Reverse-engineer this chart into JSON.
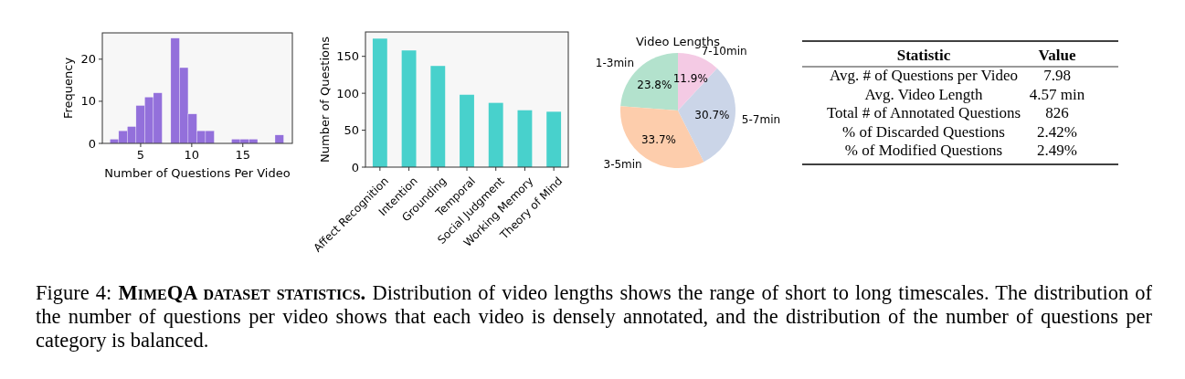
{
  "chart_data": [
    {
      "type": "histogram",
      "xlabel": "Number of Questions Per Video",
      "ylabel": "Frequency",
      "bins": [
        2,
        2.85,
        3.7,
        4.55,
        5.4,
        6.25,
        7.1,
        7.95,
        8.8,
        9.65,
        10.5,
        11.35,
        12.2,
        13.05,
        13.9,
        14.75,
        15.6,
        16.45,
        17.3,
        18.15,
        19
      ],
      "values": [
        1,
        3,
        4,
        9,
        11,
        12,
        0,
        25,
        18,
        7,
        3,
        3,
        0,
        0,
        1,
        1,
        1,
        0,
        0,
        2
      ],
      "color": "#9370db",
      "xlim": [
        1.25,
        19.85
      ],
      "xticks": [
        5,
        10,
        15
      ],
      "ylim": [
        0,
        26.25
      ],
      "yticks": [
        0,
        10,
        20
      ],
      "grid": false
    },
    {
      "type": "bar",
      "ylabel": "Number of Questions",
      "categories": [
        "Affect Recognition",
        "Intention",
        "Grounding",
        "Temporal",
        "Social Judgment",
        "Working Memory",
        "Theory of Mind"
      ],
      "values": [
        174,
        158,
        137,
        98,
        87,
        77,
        75
      ],
      "color": "#48d1cc",
      "ylim": [
        0,
        183
      ],
      "yticks": [
        0,
        50,
        100,
        150
      ],
      "grid": false
    },
    {
      "type": "pie",
      "title": "Video Lengths",
      "categories": [
        "1-3min",
        "3-5min",
        "5-7min",
        "7-10min"
      ],
      "values": [
        23.8,
        33.7,
        30.7,
        11.9
      ],
      "value_labels": [
        "23.8%",
        "33.7%",
        "30.7%",
        "11.9%"
      ],
      "colors": [
        "#b3e2cd",
        "#fdcdac",
        "#cbd5e8",
        "#f4cae4"
      ]
    },
    {
      "type": "other",
      "categories": [
        "Statistic",
        "Value"
      ],
      "cell_labels": [
        [
          "Avg. # of Questions per Video",
          "7.98"
        ],
        [
          "Avg. Video Length",
          "4.57 min"
        ],
        [
          "Total # of Annotated Questions",
          "826"
        ],
        [
          "% of Discarded Questions",
          "2.42%"
        ],
        [
          "% of Modified Questions",
          "2.49%"
        ]
      ],
      "annotations": [
        "Figure 4:",
        "MimeQA dataset statistics.",
        "Distribution of video lengths shows the range of short to long timescales. The distribution of the number of questions per video shows that each video is densely annotated, and the distribution of the number of questions per category is balanced."
      ]
    }
  ]
}
